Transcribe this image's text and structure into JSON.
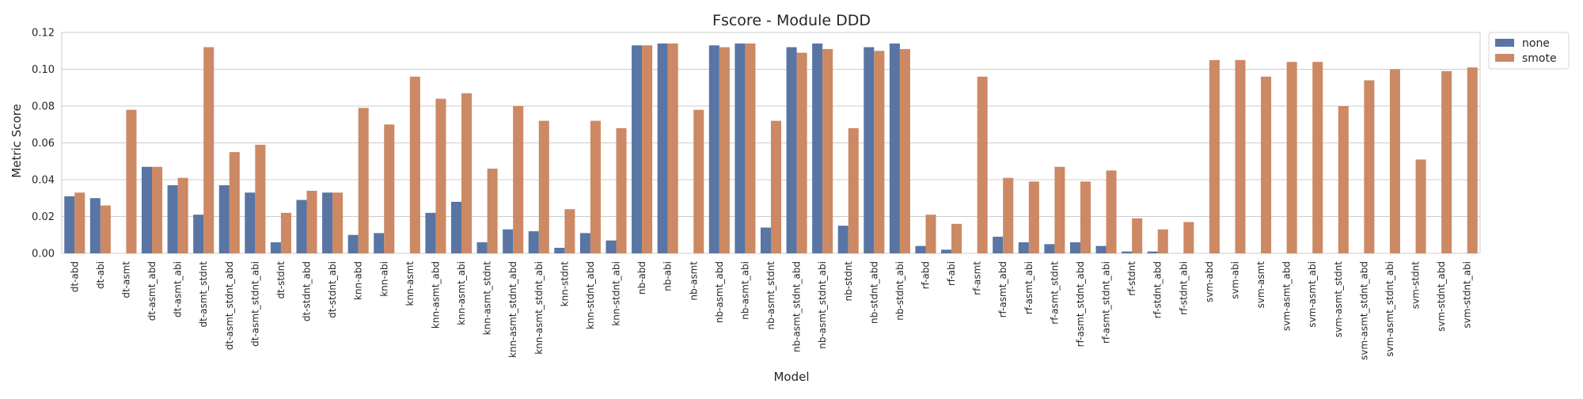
{
  "chart_data": {
    "type": "bar",
    "title": "Fscore - Module DDD",
    "xlabel": "Model",
    "ylabel": "Metric Score",
    "ylim": [
      0,
      0.12
    ],
    "yticks": [
      "0.00",
      "0.02",
      "0.04",
      "0.06",
      "0.08",
      "0.10",
      "0.12"
    ],
    "grid": true,
    "legend_position": "outside-top-right",
    "categories": [
      "dt-abd",
      "dt-abi",
      "dt-asmt",
      "dt-asmt_abd",
      "dt-asmt_abi",
      "dt-asmt_stdnt",
      "dt-asmt_stdnt_abd",
      "dt-asmt_stdnt_abi",
      "dt-stdnt",
      "dt-stdnt_abd",
      "dt-stdnt_abi",
      "knn-abd",
      "knn-abi",
      "knn-asmt",
      "knn-asmt_abd",
      "knn-asmt_abi",
      "knn-asmt_stdnt",
      "knn-asmt_stdnt_abd",
      "knn-asmt_stdnt_abi",
      "knn-stdnt",
      "knn-stdnt_abd",
      "knn-stdnt_abi",
      "nb-abd",
      "nb-abi",
      "nb-asmt",
      "nb-asmt_abd",
      "nb-asmt_abi",
      "nb-asmt_stdnt",
      "nb-asmt_stdnt_abd",
      "nb-asmt_stdnt_abi",
      "nb-stdnt",
      "nb-stdnt_abd",
      "nb-stdnt_abi",
      "rf-abd",
      "rf-abi",
      "rf-asmt",
      "rf-asmt_abd",
      "rf-asmt_abi",
      "rf-asmt_stdnt",
      "rf-asmt_stdnt_abd",
      "rf-asmt_stdnt_abi",
      "rf-stdnt",
      "rf-stdnt_abd",
      "rf-stdnt_abi",
      "svm-abd",
      "svm-abi",
      "svm-asmt",
      "svm-asmt_abd",
      "svm-asmt_abi",
      "svm-asmt_stdnt",
      "svm-asmt_stdnt_abd",
      "svm-asmt_stdnt_abi",
      "svm-stdnt",
      "svm-stdnt_abd",
      "svm-stdnt_abi"
    ],
    "series": [
      {
        "name": "none",
        "color": "#5875a4",
        "values": [
          0.031,
          0.03,
          0.0,
          0.047,
          0.037,
          0.021,
          0.037,
          0.033,
          0.006,
          0.029,
          0.033,
          0.01,
          0.011,
          0.0,
          0.022,
          0.028,
          0.006,
          0.013,
          0.012,
          0.003,
          0.011,
          0.007,
          0.113,
          0.114,
          0.0,
          0.113,
          0.114,
          0.014,
          0.112,
          0.114,
          0.015,
          0.112,
          0.114,
          0.004,
          0.002,
          0.0,
          0.009,
          0.006,
          0.005,
          0.006,
          0.004,
          0.001,
          0.001,
          0.0,
          0.0,
          0.0,
          0.0,
          0.0,
          0.0,
          0.0,
          0.0,
          0.0,
          0.0,
          0.0,
          0.0
        ]
      },
      {
        "name": "smote",
        "color": "#cc8963",
        "values": [
          0.033,
          0.026,
          0.078,
          0.047,
          0.041,
          0.112,
          0.055,
          0.059,
          0.022,
          0.034,
          0.033,
          0.079,
          0.07,
          0.096,
          0.084,
          0.087,
          0.046,
          0.08,
          0.072,
          0.024,
          0.072,
          0.068,
          0.113,
          0.114,
          0.078,
          0.112,
          0.114,
          0.072,
          0.109,
          0.111,
          0.068,
          0.11,
          0.111,
          0.021,
          0.016,
          0.096,
          0.041,
          0.039,
          0.047,
          0.039,
          0.045,
          0.019,
          0.013,
          0.017,
          0.105,
          0.105,
          0.096,
          0.104,
          0.104,
          0.08,
          0.094,
          0.1,
          0.051,
          0.099,
          0.101
        ]
      }
    ]
  }
}
